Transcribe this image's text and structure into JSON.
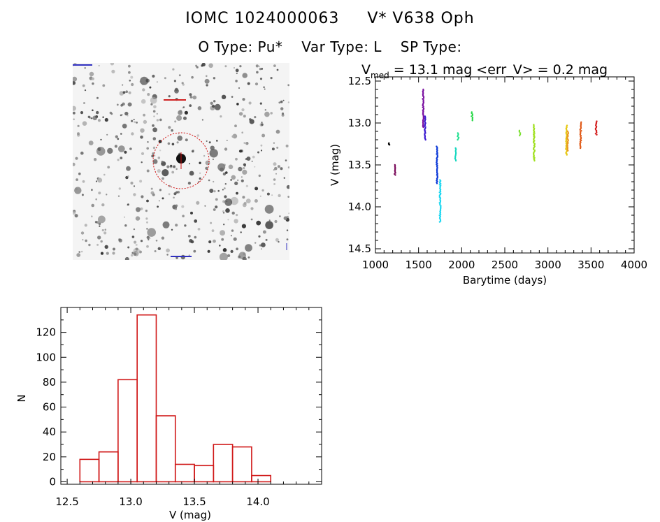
{
  "header": {
    "id_label": "IOMC 1024000063",
    "name": "V* V638 Oph",
    "otype_label": "O Type: Pu*",
    "vartype_label": "Var Type: L",
    "sptype_label": "SP Type:"
  },
  "lightcurve_stats": {
    "vmed_prefix": "V",
    "vmed_sub": "med",
    "vmed_text": " = 13.1 mag <err_V> = 0.2 mag"
  },
  "chart_data": [
    {
      "type": "scatter",
      "title": "",
      "xlabel": "Barytime (days)",
      "ylabel": "V (mag)",
      "xlim": [
        1000,
        4000
      ],
      "ylim": [
        14.55,
        12.45
      ],
      "y_inverted": true,
      "xticks": [
        "1000",
        "1500",
        "2000",
        "2500",
        "3000",
        "3500",
        "4000"
      ],
      "yticks": [
        "12.5",
        "13.0",
        "13.5",
        "14.0",
        "14.5"
      ],
      "clusters": [
        {
          "x": 1160,
          "ymin": 13.24,
          "ymax": 13.26,
          "color": "#000000"
        },
        {
          "x": 1225,
          "ymin": 13.5,
          "ymax": 13.62,
          "color": "#7a0a5a"
        },
        {
          "x": 1555,
          "ymin": 12.6,
          "ymax": 13.05,
          "color": "#7a10a0"
        },
        {
          "x": 1575,
          "ymin": 12.92,
          "ymax": 13.2,
          "color": "#3a1ad0"
        },
        {
          "x": 1715,
          "ymin": 13.28,
          "ymax": 13.72,
          "color": "#0c3ad8"
        },
        {
          "x": 1750,
          "ymin": 13.68,
          "ymax": 14.18,
          "color": "#1ad6f0"
        },
        {
          "x": 1930,
          "ymin": 13.3,
          "ymax": 13.45,
          "color": "#19d8c0"
        },
        {
          "x": 1960,
          "ymin": 13.12,
          "ymax": 13.2,
          "color": "#20e090"
        },
        {
          "x": 2120,
          "ymin": 12.87,
          "ymax": 12.97,
          "color": "#28d848"
        },
        {
          "x": 2675,
          "ymin": 13.09,
          "ymax": 13.15,
          "color": "#7ae030"
        },
        {
          "x": 2840,
          "ymin": 13.02,
          "ymax": 13.45,
          "color": "#a0e020"
        },
        {
          "x": 3215,
          "ymin": 13.03,
          "ymax": 13.38,
          "color": "#e6c812"
        },
        {
          "x": 3230,
          "ymin": 13.1,
          "ymax": 13.33,
          "color": "#e89820"
        },
        {
          "x": 3380,
          "ymin": 12.99,
          "ymax": 13.3,
          "color": "#e05a18"
        },
        {
          "x": 3560,
          "ymin": 12.98,
          "ymax": 13.14,
          "color": "#d42020"
        }
      ]
    },
    {
      "type": "bar",
      "title": "",
      "xlabel": "V (mag)",
      "ylabel": "N",
      "xlim": [
        12.45,
        14.5
      ],
      "ylim": [
        -2,
        140
      ],
      "xticks": [
        "12.5",
        "13.0",
        "13.5",
        "14.0"
      ],
      "yticks": [
        "0",
        "20",
        "40",
        "60",
        "80",
        "100",
        "120"
      ],
      "bin_edges": [
        12.6,
        12.75,
        12.9,
        13.05,
        13.2,
        13.35,
        13.5,
        13.65,
        13.8,
        13.95,
        14.1
      ],
      "counts": [
        18,
        24,
        82,
        134,
        53,
        14,
        13,
        30,
        28,
        5
      ]
    }
  ]
}
